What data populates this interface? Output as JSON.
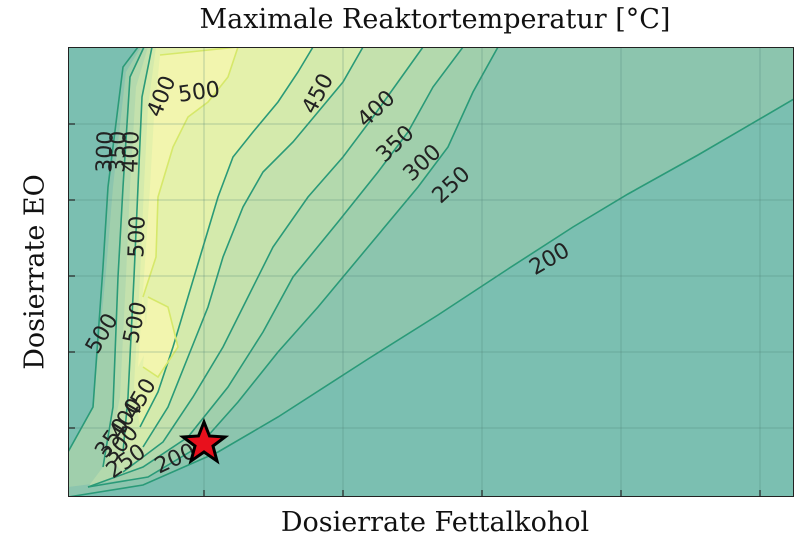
{
  "chart_data": {
    "type": "contour",
    "title": "Maximale Reaktortemperatur [°C]",
    "xlabel": "Dosierrate Fettalkohol",
    "ylabel": "Dosierrate EO",
    "x_tick_labels": [],
    "y_tick_labels": [],
    "grid": true,
    "colormap": "summer (green to yellow)",
    "colors": {
      "background": "#7bbfb1",
      "contour_line": "#2a9a78",
      "peak_fill": "#f6f7b2",
      "marker_fill": "#e8101c",
      "marker_outline": "#000000"
    },
    "contour_labels": [
      "500",
      "400",
      "450",
      "400",
      "350",
      "300",
      "250",
      "300",
      "350",
      "400",
      "500",
      "500",
      "500",
      "450",
      "400",
      "350",
      "300",
      "250",
      "200",
      "200"
    ],
    "marker": {
      "symbol": "star",
      "description": "operating point"
    }
  }
}
